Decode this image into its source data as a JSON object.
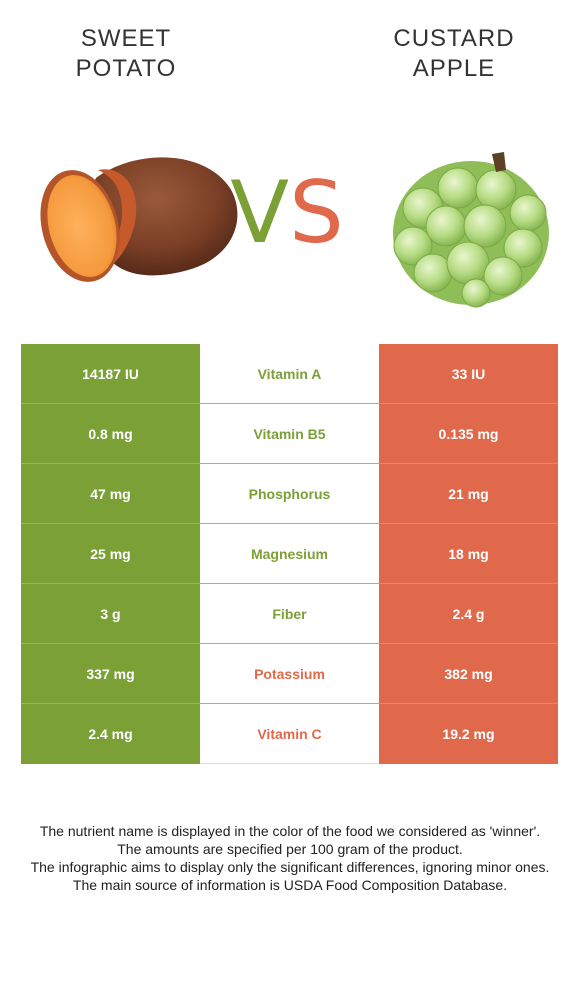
{
  "foods": {
    "left": {
      "line1": "SWEET",
      "line2": "POTATO",
      "color": "#7aa036"
    },
    "right": {
      "line1": "CUSTARD",
      "line2": "APPLE",
      "color": "#e0694b"
    }
  },
  "vs": {
    "v": "V",
    "s": "S"
  },
  "nutrients": [
    {
      "left": "14187 IU",
      "name": "Vitamin A",
      "right": "33 IU",
      "winner": "left"
    },
    {
      "left": "0.8 mg",
      "name": "Vitamin B5",
      "right": "0.135 mg",
      "winner": "left"
    },
    {
      "left": "47 mg",
      "name": "Phosphorus",
      "right": "21 mg",
      "winner": "left"
    },
    {
      "left": "25 mg",
      "name": "Magnesium",
      "right": "18 mg",
      "winner": "left"
    },
    {
      "left": "3 g",
      "name": "Fiber",
      "right": "2.4 g",
      "winner": "left"
    },
    {
      "left": "337 mg",
      "name": "Potassium",
      "right": "382 mg",
      "winner": "right"
    },
    {
      "left": "2.4 mg",
      "name": "Vitamin C",
      "right": "19.2 mg",
      "winner": "right"
    }
  ],
  "notes": [
    "The nutrient name is displayed in the color of the food we considered as 'winner'.",
    "The amounts are specified per 100 gram of the product.",
    "The infographic aims to display only the significant differences, ignoring minor ones.",
    "The main source of information is USDA Food Composition Database."
  ]
}
